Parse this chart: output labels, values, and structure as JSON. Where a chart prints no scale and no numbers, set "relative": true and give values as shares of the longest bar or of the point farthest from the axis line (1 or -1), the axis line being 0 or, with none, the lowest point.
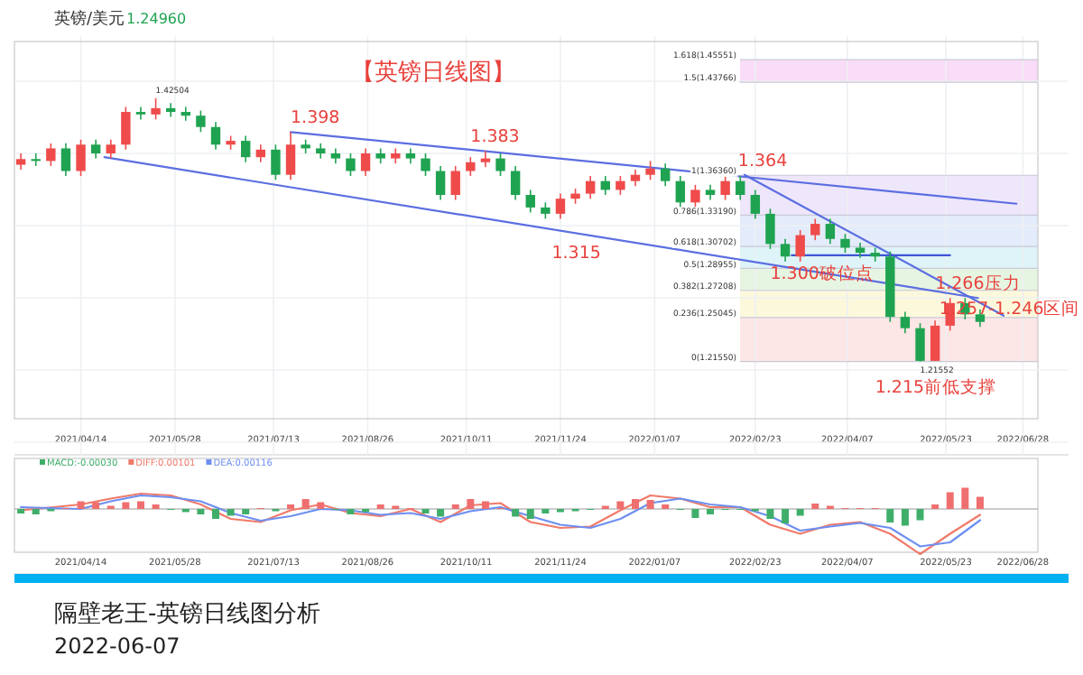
{
  "chart_data": [
    {
      "type": "candlestick",
      "title": "【英镑日线图】",
      "xlim": [
        "2021-03-14",
        "2022-07-05"
      ],
      "ylim": [
        1.17,
        1.47
      ],
      "tick_labels": "x",
      "grid": true,
      "xticks": [
        {
          "value": "2021-04-14",
          "label": "2021/04/14"
        },
        {
          "value": "2021-05-28",
          "label": "2021/05/28"
        },
        {
          "value": "2021-07-13",
          "label": "2021/07/13"
        },
        {
          "value": "2021-08-26",
          "label": "2021/08/26"
        },
        {
          "value": "2021-10-11",
          "label": "2021/10/11"
        },
        {
          "value": "2021-11-24",
          "label": "2021/11/24"
        },
        {
          "value": "2022-01-07",
          "label": "2022/01/07"
        },
        {
          "value": "2022-02-23",
          "label": "2022/02/23"
        },
        {
          "value": "2022-04-07",
          "label": "2022/04/07"
        },
        {
          "value": "2022-05-23",
          "label": "2022/05/23"
        },
        {
          "value": "2022-06-28",
          "label": "2022/06/28"
        }
      ],
      "bands": [
        {
          "axis": "y",
          "from": 1.43766,
          "to": 1.45551,
          "color": "#f9dcf7"
        },
        {
          "axis": "y",
          "from": 1.3319,
          "to": 1.3636,
          "color": "#eee6fb"
        },
        {
          "axis": "y",
          "from": 1.30702,
          "to": 1.3319,
          "color": "#e4ecfb"
        },
        {
          "axis": "y",
          "from": 1.28955,
          "to": 1.30702,
          "color": "#def4f8"
        },
        {
          "axis": "y",
          "from": 1.27208,
          "to": 1.28955,
          "color": "#e6f5e2"
        },
        {
          "axis": "y",
          "from": 1.25045,
          "to": 1.27208,
          "color": "#fcf8dc"
        },
        {
          "axis": "y",
          "from": 1.2155,
          "to": 1.25045,
          "color": "#fde6e6"
        }
      ],
      "ref_lines": [
        {
          "axis": "y",
          "value": 1.45551,
          "label": "1.618(1.45551)"
        },
        {
          "axis": "y",
          "value": 1.43766,
          "label": "1.5(1.43766)"
        },
        {
          "axis": "y",
          "value": 1.3636,
          "label": "1(1.36360)"
        },
        {
          "axis": "y",
          "value": 1.3319,
          "label": "0.786(1.33190)"
        },
        {
          "axis": "y",
          "value": 1.30702,
          "label": "0.618(1.30702)"
        },
        {
          "axis": "y",
          "value": 1.28955,
          "label": "0.5(1.28955)"
        },
        {
          "axis": "y",
          "value": 1.27208,
          "label": "0.382(1.27208)"
        },
        {
          "axis": "y",
          "value": 1.25045,
          "label": "0.236(1.25045)"
        },
        {
          "axis": "y",
          "value": 1.2155,
          "label": "0(1.21550)"
        }
      ],
      "series": [
        {
          "type": "candlestick",
          "x": [
            "2021-03-17",
            "2021-03-24",
            "2021-03-31",
            "2021-04-07",
            "2021-04-14",
            "2021-04-21",
            "2021-04-28",
            "2021-05-05",
            "2021-05-12",
            "2021-05-19",
            "2021-05-26",
            "2021-06-02",
            "2021-06-09",
            "2021-06-16",
            "2021-06-23",
            "2021-06-30",
            "2021-07-07",
            "2021-07-14",
            "2021-07-21",
            "2021-07-28",
            "2021-08-04",
            "2021-08-11",
            "2021-08-18",
            "2021-08-25",
            "2021-09-01",
            "2021-09-08",
            "2021-09-15",
            "2021-09-22",
            "2021-09-29",
            "2021-10-06",
            "2021-10-13",
            "2021-10-20",
            "2021-10-27",
            "2021-11-03",
            "2021-11-10",
            "2021-11-17",
            "2021-11-24",
            "2021-12-01",
            "2021-12-08",
            "2021-12-15",
            "2021-12-22",
            "2021-12-29",
            "2022-01-05",
            "2022-01-12",
            "2022-01-19",
            "2022-01-26",
            "2022-02-02",
            "2022-02-09",
            "2022-02-16",
            "2022-02-23",
            "2022-03-02",
            "2022-03-09",
            "2022-03-16",
            "2022-03-23",
            "2022-03-30",
            "2022-04-06",
            "2022-04-13",
            "2022-04-20",
            "2022-04-27",
            "2022-05-04",
            "2022-05-11",
            "2022-05-18",
            "2022-05-25",
            "2022-06-01",
            "2022-06-08"
          ],
          "ohlc": [
            [
              1.372,
              1.381,
              1.368,
              1.3765
            ],
            [
              1.3765,
              1.381,
              1.371,
              1.375
            ],
            [
              1.375,
              1.389,
              1.371,
              1.385
            ],
            [
              1.385,
              1.389,
              1.363,
              1.367
            ],
            [
              1.367,
              1.392,
              1.363,
              1.388
            ],
            [
              1.388,
              1.392,
              1.377,
              1.381
            ],
            [
              1.381,
              1.392,
              1.377,
              1.388
            ],
            [
              1.388,
              1.418,
              1.384,
              1.414
            ],
            [
              1.414,
              1.418,
              1.408,
              1.412
            ],
            [
              1.412,
              1.425,
              1.408,
              1.417
            ],
            [
              1.417,
              1.421,
              1.41,
              1.414
            ],
            [
              1.414,
              1.418,
              1.407,
              1.411
            ],
            [
              1.411,
              1.415,
              1.398,
              1.402
            ],
            [
              1.402,
              1.406,
              1.384,
              1.388
            ],
            [
              1.388,
              1.395,
              1.384,
              1.391
            ],
            [
              1.391,
              1.395,
              1.374,
              1.378
            ],
            [
              1.378,
              1.388,
              1.374,
              1.384
            ],
            [
              1.384,
              1.388,
              1.36,
              1.364
            ],
            [
              1.364,
              1.398,
              1.36,
              1.388
            ],
            [
              1.388,
              1.392,
              1.381,
              1.385
            ],
            [
              1.385,
              1.389,
              1.377,
              1.381
            ],
            [
              1.381,
              1.385,
              1.373,
              1.377
            ],
            [
              1.377,
              1.381,
              1.363,
              1.367
            ],
            [
              1.367,
              1.385,
              1.363,
              1.381
            ],
            [
              1.381,
              1.385,
              1.373,
              1.377
            ],
            [
              1.377,
              1.385,
              1.373,
              1.381
            ],
            [
              1.381,
              1.385,
              1.373,
              1.377
            ],
            [
              1.377,
              1.381,
              1.363,
              1.367
            ],
            [
              1.367,
              1.371,
              1.344,
              1.348
            ],
            [
              1.348,
              1.371,
              1.344,
              1.367
            ],
            [
              1.367,
              1.378,
              1.363,
              1.374
            ],
            [
              1.374,
              1.383,
              1.37,
              1.377
            ],
            [
              1.377,
              1.381,
              1.363,
              1.367
            ],
            [
              1.367,
              1.371,
              1.344,
              1.348
            ],
            [
              1.348,
              1.352,
              1.334,
              1.338
            ],
            [
              1.338,
              1.342,
              1.329,
              1.333
            ],
            [
              1.333,
              1.349,
              1.329,
              1.345
            ],
            [
              1.345,
              1.353,
              1.341,
              1.349
            ],
            [
              1.349,
              1.363,
              1.345,
              1.359
            ],
            [
              1.359,
              1.363,
              1.348,
              1.352
            ],
            [
              1.352,
              1.363,
              1.348,
              1.359
            ],
            [
              1.359,
              1.368,
              1.355,
              1.364
            ],
            [
              1.364,
              1.375,
              1.36,
              1.369
            ],
            [
              1.369,
              1.373,
              1.355,
              1.359
            ],
            [
              1.359,
              1.363,
              1.338,
              1.342
            ],
            [
              1.342,
              1.356,
              1.338,
              1.352
            ],
            [
              1.352,
              1.356,
              1.344,
              1.348
            ],
            [
              1.348,
              1.364,
              1.344,
              1.359
            ],
            [
              1.359,
              1.363,
              1.344,
              1.348
            ],
            [
              1.348,
              1.352,
              1.329,
              1.333
            ],
            [
              1.333,
              1.337,
              1.305,
              1.309
            ],
            [
              1.309,
              1.313,
              1.295,
              1.299
            ],
            [
              1.299,
              1.32,
              1.295,
              1.316
            ],
            [
              1.316,
              1.329,
              1.312,
              1.325
            ],
            [
              1.325,
              1.329,
              1.309,
              1.313
            ],
            [
              1.313,
              1.317,
              1.302,
              1.306
            ],
            [
              1.306,
              1.31,
              1.298,
              1.302
            ],
            [
              1.302,
              1.306,
              1.295,
              1.299
            ],
            [
              1.299,
              1.303,
              1.247,
              1.251
            ],
            [
              1.251,
              1.255,
              1.238,
              1.242
            ],
            [
              1.242,
              1.246,
              1.2155,
              1.216
            ],
            [
              1.216,
              1.248,
              1.216,
              1.244
            ],
            [
              1.244,
              1.266,
              1.24,
              1.262
            ],
            [
              1.262,
              1.266,
              1.249,
              1.253
            ],
            [
              1.253,
              1.257,
              1.243,
              1.247
            ]
          ],
          "colors": [
            "#ef4b4b",
            "#1fa351",
            "#ef4b4b",
            "#1fa351",
            "#ef4b4b",
            "#1fa351",
            "#ef4b4b",
            "#ef4b4b",
            "#1fa351",
            "#ef4b4b",
            "#1fa351",
            "#1fa351",
            "#1fa351",
            "#1fa351",
            "#ef4b4b",
            "#1fa351",
            "#ef4b4b",
            "#1fa351",
            "#ef4b4b",
            "#1fa351",
            "#1fa351",
            "#1fa351",
            "#1fa351",
            "#ef4b4b",
            "#1fa351",
            "#ef4b4b",
            "#1fa351",
            "#1fa351",
            "#1fa351",
            "#ef4b4b",
            "#ef4b4b",
            "#ef4b4b",
            "#1fa351",
            "#1fa351",
            "#1fa351",
            "#1fa351",
            "#ef4b4b",
            "#ef4b4b",
            "#ef4b4b",
            "#1fa351",
            "#ef4b4b",
            "#ef4b4b",
            "#ef4b4b",
            "#1fa351",
            "#1fa351",
            "#ef4b4b",
            "#1fa351",
            "#ef4b4b",
            "#1fa351",
            "#1fa351",
            "#1fa351",
            "#1fa351",
            "#ef4b4b",
            "#ef4b4b",
            "#1fa351",
            "#1fa351",
            "#1fa351",
            "#1fa351",
            "#1fa351",
            "#1fa351",
            "#1fa351",
            "#ef4b4b",
            "#ef4b4b",
            "#1fa351",
            "#1fa351"
          ]
        },
        {
          "type": "line",
          "color": "#5b6ee1",
          "x": [
            "2021-07-21",
            "2022-06-25"
          ],
          "values": [
            1.398,
            1.341
          ]
        },
        {
          "type": "line",
          "color": "#5b6ee1",
          "x": [
            "2021-04-25",
            "2022-06-07"
          ],
          "values": [
            1.378,
            1.266
          ]
        },
        {
          "type": "line",
          "color": "#5b6ee1",
          "x": [
            "2022-02-18",
            "2022-06-19"
          ],
          "values": [
            1.364,
            1.252
          ]
        },
        {
          "type": "line",
          "color": "#3f55d6",
          "x": [
            "2022-03-12",
            "2022-05-25"
          ],
          "values": [
            1.3,
            1.3
          ]
        }
      ],
      "annotations": [
        {
          "text": "1.398",
          "x": "2021-07-21",
          "y": 1.398
        },
        {
          "text": "1.383",
          "x": "2021-10-13",
          "y": 1.383
        },
        {
          "text": "1.364",
          "x": "2022-02-15",
          "y": 1.364
        },
        {
          "text": "1.315",
          "x": "2021-11-20",
          "y": 1.315
        },
        {
          "text": "1.300破位点",
          "x": "2022-03-02",
          "y": 1.3
        },
        {
          "text": "1.266压力",
          "x": "2022-05-18",
          "y": 1.266
        },
        {
          "text": "1.257-1.246区间",
          "x": "2022-05-20",
          "y": 1.246
        },
        {
          "text": "1.215前低支撑",
          "x": "2022-04-20",
          "y": 1.215
        },
        {
          "text": "1.42504",
          "x": "2021-05-19",
          "y": 1.425
        },
        {
          "text": "1.21552",
          "x": "2022-05-11",
          "y": 1.2155
        },
        "英镑/美元",
        "1.24960",
        "隔壁老王-英镑日线图分析",
        "2022-06-07"
      ]
    },
    {
      "type": "bar",
      "relative": true,
      "legend": "top left",
      "xlim": [
        "2021-03-14",
        "2022-07-05"
      ],
      "xticks": [
        {
          "value": "2021-04-14",
          "label": "2021/04/14"
        },
        {
          "value": "2021-05-28",
          "label": "2021/05/28"
        },
        {
          "value": "2021-07-13",
          "label": "2021/07/13"
        },
        {
          "value": "2021-08-26",
          "label": "2021/08/26"
        },
        {
          "value": "2021-10-11",
          "label": "2021/10/11"
        },
        {
          "value": "2021-11-24",
          "label": "2021/11/24"
        },
        {
          "value": "2022-01-07",
          "label": "2022/01/07"
        },
        {
          "value": "2022-02-23",
          "label": "2022/02/23"
        },
        {
          "value": "2022-04-07",
          "label": "2022/04/07"
        },
        {
          "value": "2022-05-23",
          "label": "2022/05/23"
        },
        {
          "value": "2022-06-28",
          "label": "2022/06/28"
        }
      ],
      "x": [
        "2021-03-17",
        "2021-03-24",
        "2021-03-31",
        "2021-04-07",
        "2021-04-14",
        "2021-04-21",
        "2021-04-28",
        "2021-05-05",
        "2021-05-12",
        "2021-05-19",
        "2021-05-26",
        "2021-06-02",
        "2021-06-09",
        "2021-06-16",
        "2021-06-23",
        "2021-06-30",
        "2021-07-07",
        "2021-07-14",
        "2021-07-21",
        "2021-07-28",
        "2021-08-04",
        "2021-08-11",
        "2021-08-18",
        "2021-08-25",
        "2021-09-01",
        "2021-09-08",
        "2021-09-15",
        "2021-09-22",
        "2021-09-29",
        "2021-10-06",
        "2021-10-13",
        "2021-10-20",
        "2021-10-27",
        "2021-11-03",
        "2021-11-10",
        "2021-11-17",
        "2021-11-24",
        "2021-12-01",
        "2021-12-08",
        "2021-12-15",
        "2021-12-22",
        "2021-12-29",
        "2022-01-05",
        "2022-01-12",
        "2022-01-19",
        "2022-01-26",
        "2022-02-02",
        "2022-02-09",
        "2022-02-16",
        "2022-02-23",
        "2022-03-02",
        "2022-03-09",
        "2022-03-16",
        "2022-03-23",
        "2022-03-30",
        "2022-04-06",
        "2022-04-13",
        "2022-04-20",
        "2022-04-27",
        "2022-05-04",
        "2022-05-11",
        "2022-05-18",
        "2022-05-25",
        "2022-06-01",
        "2022-06-08"
      ],
      "series": [
        {
          "name": "MACD:-0.00030",
          "type": "bar",
          "values": [
            -0.1,
            -0.12,
            -0.05,
            0.02,
            0.17,
            0.15,
            0.07,
            0.15,
            0.17,
            0.1,
            -0.02,
            -0.07,
            -0.12,
            -0.22,
            -0.15,
            -0.12,
            0.02,
            -0.05,
            0.1,
            0.22,
            0.15,
            -0.02,
            -0.12,
            -0.07,
            0.1,
            0.07,
            0.02,
            -0.1,
            -0.17,
            0.1,
            0.22,
            0.17,
            0.02,
            -0.17,
            -0.22,
            -0.1,
            -0.07,
            -0.05,
            -0.02,
            0.07,
            0.17,
            0.22,
            0.2,
            0.1,
            -0.02,
            -0.2,
            -0.12,
            -0.02,
            -0.02,
            -0.05,
            -0.22,
            -0.32,
            -0.15,
            0.12,
            0.07,
            0.02,
            0.02,
            0.02,
            -0.3,
            -0.37,
            -0.25,
            0.1,
            0.37,
            0.47,
            0.27
          ],
          "colors": [
            "#3fae6a",
            "#3fae6a",
            "#3fae6a",
            "#ef6f6f",
            "#ef6f6f",
            "#ef6f6f",
            "#ef6f6f",
            "#ef6f6f",
            "#ef6f6f",
            "#ef6f6f",
            "#3fae6a",
            "#3fae6a",
            "#3fae6a",
            "#3fae6a",
            "#3fae6a",
            "#3fae6a",
            "#ef6f6f",
            "#3fae6a",
            "#ef6f6f",
            "#ef6f6f",
            "#ef6f6f",
            "#3fae6a",
            "#3fae6a",
            "#3fae6a",
            "#ef6f6f",
            "#ef6f6f",
            "#ef6f6f",
            "#3fae6a",
            "#3fae6a",
            "#ef6f6f",
            "#ef6f6f",
            "#ef6f6f",
            "#ef6f6f",
            "#3fae6a",
            "#3fae6a",
            "#3fae6a",
            "#3fae6a",
            "#3fae6a",
            "#3fae6a",
            "#ef6f6f",
            "#ef6f6f",
            "#ef6f6f",
            "#ef6f6f",
            "#ef6f6f",
            "#3fae6a",
            "#3fae6a",
            "#3fae6a",
            "#3fae6a",
            "#3fae6a",
            "#3fae6a",
            "#3fae6a",
            "#3fae6a",
            "#3fae6a",
            "#ef6f6f",
            "#ef6f6f",
            "#ef6f6f",
            "#ef6f6f",
            "#ef6f6f",
            "#3fae6a",
            "#3fae6a",
            "#3fae6a",
            "#ef6f6f",
            "#ef6f6f",
            "#ef6f6f",
            "#ef6f6f"
          ]
        },
        {
          "name": "DIFF:0.00101",
          "type": "line",
          "color": "#f07a6a",
          "x": [
            "2021-03-17",
            "2021-04-14",
            "2021-04-28",
            "2021-05-12",
            "2021-05-26",
            "2021-06-09",
            "2021-06-23",
            "2021-07-07",
            "2021-07-21",
            "2021-08-04",
            "2021-08-18",
            "2021-09-01",
            "2021-09-15",
            "2021-09-29",
            "2021-10-13",
            "2021-10-27",
            "2021-11-10",
            "2021-11-24",
            "2021-12-08",
            "2021-12-22",
            "2022-01-05",
            "2022-01-19",
            "2022-02-02",
            "2022-02-16",
            "2022-03-02",
            "2022-03-16",
            "2022-03-30",
            "2022-04-13",
            "2022-04-27",
            "2022-05-11",
            "2022-05-25",
            "2022-06-08"
          ],
          "values": [
            -0.03,
            0.1,
            0.23,
            0.34,
            0.3,
            0.1,
            -0.22,
            -0.29,
            -0.03,
            0.1,
            -0.09,
            -0.16,
            0,
            -0.29,
            0.08,
            0.13,
            -0.29,
            -0.42,
            -0.39,
            -0.03,
            0.3,
            0.23,
            0.04,
            0.04,
            -0.35,
            -0.55,
            -0.35,
            -0.29,
            -0.55,
            -1,
            -0.55,
            -0.13
          ]
        },
        {
          "name": "DEA:0.00116",
          "type": "line",
          "color": "#6d8ff0",
          "x": [
            "2021-03-17",
            "2021-04-14",
            "2021-04-28",
            "2021-05-12",
            "2021-05-26",
            "2021-06-09",
            "2021-06-23",
            "2021-07-07",
            "2021-07-21",
            "2021-08-04",
            "2021-08-18",
            "2021-09-01",
            "2021-09-15",
            "2021-09-29",
            "2021-10-13",
            "2021-10-27",
            "2021-11-10",
            "2021-11-24",
            "2021-12-08",
            "2021-12-22",
            "2022-01-05",
            "2022-01-19",
            "2022-02-02",
            "2022-02-16",
            "2022-03-02",
            "2022-03-16",
            "2022-03-30",
            "2022-04-13",
            "2022-04-27",
            "2022-05-11",
            "2022-05-25",
            "2022-06-08"
          ],
          "values": [
            0.04,
            0,
            0.17,
            0.3,
            0.26,
            0.17,
            -0.09,
            -0.26,
            -0.16,
            0,
            -0.03,
            -0.13,
            -0.09,
            -0.22,
            -0.05,
            0.04,
            -0.16,
            -0.35,
            -0.42,
            -0.22,
            0.13,
            0.23,
            0.1,
            0.04,
            -0.16,
            -0.48,
            -0.39,
            -0.31,
            -0.42,
            -0.83,
            -0.74,
            -0.25
          ]
        }
      ]
    }
  ]
}
